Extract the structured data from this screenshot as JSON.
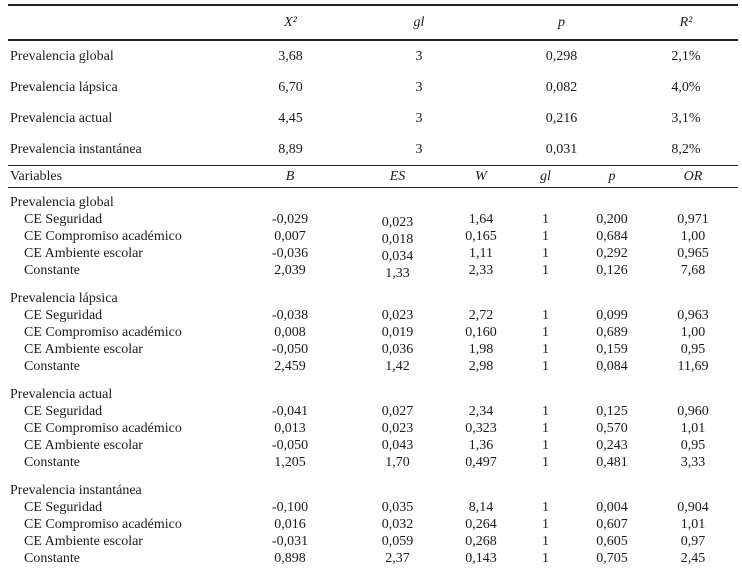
{
  "model_fit_table": {
    "headers": {
      "label": "",
      "x2": "X²",
      "gl": "gl",
      "p": "p",
      "r2": "R²"
    },
    "rows": [
      {
        "label": "Prevalencia global",
        "x2": "3,68",
        "gl": "3",
        "p": "0,298",
        "r2": "2,1%"
      },
      {
        "label": "Prevalencia lápsica",
        "x2": "6,70",
        "gl": "3",
        "p": "0,082",
        "r2": "4,0%"
      },
      {
        "label": "Prevalencia actual",
        "x2": "4,45",
        "gl": "3",
        "p": "0,216",
        "r2": "3,1%"
      },
      {
        "label": "Prevalencia instantánea",
        "x2": "8,89",
        "gl": "3",
        "p": "0,031",
        "r2": "8,2%"
      }
    ]
  },
  "regression_table": {
    "headers": {
      "label": "Variables",
      "b": "B",
      "es": "ES",
      "w": "W",
      "gl": "gl",
      "p": "p",
      "or": "OR"
    },
    "groups": [
      {
        "label": "Prevalencia global",
        "rows": [
          {
            "label": "CE Seguridad",
            "b": "-0,029",
            "es": "0,023",
            "w": "1,64",
            "gl": "1",
            "p": "0,200",
            "or": "0,971"
          },
          {
            "label": "CE Compromiso académico",
            "b": "0,007",
            "es": "0,018",
            "w": "0,165",
            "gl": "1",
            "p": "0,684",
            "or": "1,00"
          },
          {
            "label": "CE Ambiente escolar",
            "b": "-0,036",
            "es": "0,034",
            "w": "1,11",
            "gl": "1",
            "p": "0,292",
            "or": "0,965"
          },
          {
            "label": "Constante",
            "b": "2,039",
            "es": "1,33",
            "w": "2,33",
            "gl": "1",
            "p": "0,126",
            "or": "7,68"
          }
        ]
      },
      {
        "label": "Prevalencia lápsica",
        "rows": [
          {
            "label": "CE Seguridad",
            "b": "-0,038",
            "es": "0,023",
            "w": "2,72",
            "gl": "1",
            "p": "0,099",
            "or": "0,963"
          },
          {
            "label": "CE Compromiso académico",
            "b": "0,008",
            "es": "0,019",
            "w": "0,160",
            "gl": "1",
            "p": "0,689",
            "or": "1,00"
          },
          {
            "label": "CE Ambiente escolar",
            "b": "-0,050",
            "es": "0,036",
            "w": "1,98",
            "gl": "1",
            "p": "0,159",
            "or": "0,95"
          },
          {
            "label": "Constante",
            "b": "2,459",
            "es": "1,42",
            "w": "2,98",
            "gl": "1",
            "p": "0,084",
            "or": "11,69"
          }
        ]
      },
      {
        "label": "Prevalencia actual",
        "rows": [
          {
            "label": "CE Seguridad",
            "b": "-0,041",
            "es": "0,027",
            "w": "2,34",
            "gl": "1",
            "p": "0,125",
            "or": "0,960"
          },
          {
            "label": "CE Compromiso académico",
            "b": "0,013",
            "es": "0,023",
            "w": "0,323",
            "gl": "1",
            "p": "0,570",
            "or": "1,01"
          },
          {
            "label": "CE Ambiente escolar",
            "b": "-0,050",
            "es": "0,043",
            "w": "1,36",
            "gl": "1",
            "p": "0,243",
            "or": "0,95"
          },
          {
            "label": "Constante",
            "b": "1,205",
            "es": "1,70",
            "w": "0,497",
            "gl": "1",
            "p": "0,481",
            "or": "3,33"
          }
        ]
      },
      {
        "label": "Prevalencia instantánea",
        "rows": [
          {
            "label": "CE Seguridad",
            "b": "-0,100",
            "es": "0,035",
            "w": "8,14",
            "gl": "1",
            "p": "0,004",
            "or": "0,904"
          },
          {
            "label": "CE Compromiso académico",
            "b": "0,016",
            "es": "0,032",
            "w": "0,264",
            "gl": "1",
            "p": "0,607",
            "or": "1,01"
          },
          {
            "label": "CE Ambiente escolar",
            "b": "-0,031",
            "es": "0,059",
            "w": "0,268",
            "gl": "1",
            "p": "0,605",
            "or": "0,97"
          },
          {
            "label": "Constante",
            "b": "0,898",
            "es": "2,37",
            "w": "0,143",
            "gl": "1",
            "p": "0,705",
            "or": "2,45"
          }
        ]
      }
    ]
  }
}
